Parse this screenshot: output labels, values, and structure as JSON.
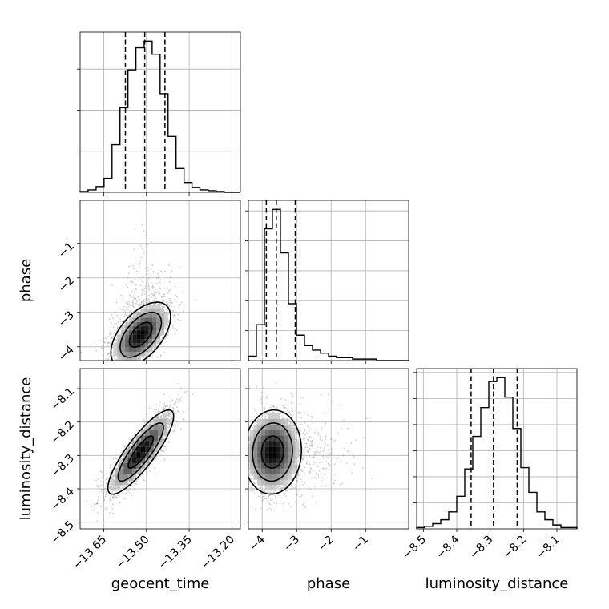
{
  "chart_data": {
    "type": "corner",
    "parameters": [
      "geocent_time",
      "phase",
      "luminosity_distance"
    ],
    "axis_labels": {
      "x": [
        "geocent_time",
        "phase",
        "luminosity_distance"
      ],
      "y": [
        "",
        "phase",
        "luminosity_distance"
      ]
    },
    "ranges": {
      "geocent_time": [
        -13.733,
        -13.17
      ],
      "phase": [
        -4.4,
        0.25
      ],
      "luminosity_distance": [
        -8.52,
        -8.04
      ]
    },
    "ticks": {
      "geocent_time": [
        -13.65,
        -13.5,
        -13.35,
        -13.2
      ],
      "phase": [
        -4,
        -3,
        -2,
        -1
      ],
      "luminosity_distance": [
        -8.5,
        -8.4,
        -8.3,
        -8.2,
        -8.1
      ]
    },
    "tick_labels": {
      "geocent_time": [
        "−13.65",
        "−13.50",
        "−13.35",
        "−13.20"
      ],
      "phase": [
        "−4",
        "−3",
        "−2",
        "−1"
      ],
      "luminosity_distance": [
        "−8.5",
        "−8.4",
        "−8.3",
        "−8.2",
        "−8.1"
      ]
    },
    "grid": true,
    "histograms": {
      "geocent_time": {
        "bins": [
          -13.733,
          -13.705,
          -13.677,
          -13.649,
          -13.621,
          -13.593,
          -13.565,
          -13.537,
          -13.508,
          -13.48,
          -13.452,
          -13.424,
          -13.396,
          -13.368,
          -13.34,
          -13.312,
          -13.283,
          -13.255,
          -13.227,
          -13.199,
          -13.17
        ],
        "counts": [
          1,
          3,
          7,
          17,
          58,
          103,
          149,
          176,
          184,
          168,
          120,
          68,
          29,
          12,
          6,
          3,
          2,
          1,
          0,
          0
        ],
        "quantiles": [
          -13.574,
          -13.506,
          -13.435
        ]
      },
      "phase": {
        "bins": [
          -4.4,
          -4.168,
          -3.935,
          -3.703,
          -3.47,
          -3.238,
          -3.005,
          -2.773,
          -2.54,
          -2.308,
          -2.075,
          -1.843,
          -1.61,
          -1.378,
          -1.145,
          -0.913,
          -0.68,
          -0.448,
          -0.215,
          0.018,
          0.25
        ],
        "counts": [
          3,
          24,
          88,
          101,
          72,
          38,
          17,
          10,
          7,
          5,
          3,
          2,
          2,
          1,
          1,
          1,
          0,
          0,
          0,
          0
        ],
        "quantiles": [
          -3.88,
          -3.59,
          -3.04
        ]
      },
      "luminosity_distance": {
        "bins": [
          -8.52,
          -8.496,
          -8.472,
          -8.448,
          -8.424,
          -8.4,
          -8.376,
          -8.352,
          -8.328,
          -8.304,
          -8.28,
          -8.256,
          -8.232,
          -8.208,
          -8.184,
          -8.16,
          -8.136,
          -8.112,
          -8.088,
          -8.064,
          -8.04
        ],
        "counts": [
          1,
          2,
          4,
          7,
          13,
          25,
          46,
          71,
          93,
          113,
          116,
          101,
          77,
          47,
          28,
          13,
          7,
          3,
          1,
          1
        ],
        "quantiles": [
          -8.357,
          -8.29,
          -8.219
        ]
      }
    },
    "joint": {
      "phase_vs_geocent_time": {
        "center": [
          -13.52,
          -3.65
        ],
        "sd": [
          0.05,
          0.45
        ],
        "corr": 0.55
      },
      "luminosity_distance_vs_geocent_time": {
        "center": [
          -13.52,
          -8.29
        ],
        "sd": [
          0.055,
          0.06
        ],
        "corr": 0.85
      },
      "luminosity_distance_vs_phase": {
        "center": [
          -3.7,
          -8.29
        ],
        "sd": [
          0.4,
          0.06
        ],
        "corr": 0.05
      }
    }
  }
}
